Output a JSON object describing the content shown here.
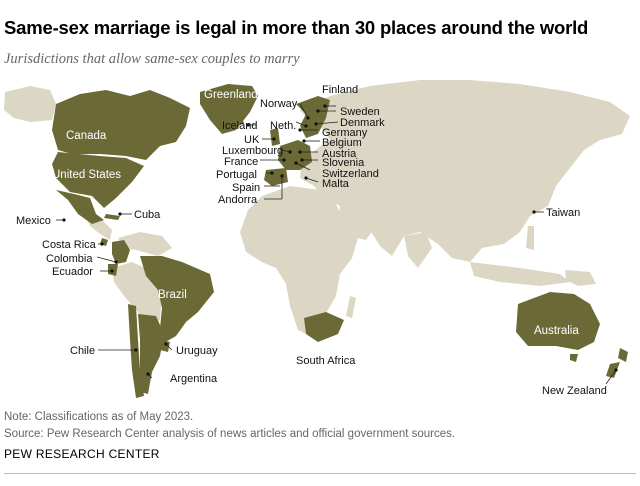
{
  "title": "Same-sex marriage is legal in more than 30 places around the world",
  "subtitle": "Jurisdictions that allow same-sex couples to marry",
  "colors": {
    "legal": "#6b6a36",
    "not_legal": "#dcd7c4",
    "background": "#ffffff"
  },
  "map": {
    "inside_labels": {
      "greenland": "Greenland",
      "canada": "Canada",
      "united_states": "United States",
      "brazil": "Brazil",
      "australia": "Australia"
    },
    "callouts": {
      "finland": "Finland",
      "norway": "Norway",
      "sweden": "Sweden",
      "iceland": "Iceland",
      "netherlands": "Neth.",
      "denmark": "Denmark",
      "germany": "Germany",
      "uk": "UK",
      "belgium": "Belgium",
      "luxembourg": "Luxembourg",
      "austria": "Austria",
      "france": "France",
      "slovenia": "Slovenia",
      "portugal": "Portugal",
      "switzerland": "Switzerland",
      "spain": "Spain",
      "malta": "Malta",
      "andorra": "Andorra",
      "mexico": "Mexico",
      "cuba": "Cuba",
      "taiwan": "Taiwan",
      "costa_rica": "Costa Rica",
      "colombia": "Colombia",
      "ecuador": "Ecuador",
      "chile": "Chile",
      "uruguay": "Uruguay",
      "argentina": "Argentina",
      "south_africa": "South Africa",
      "new_zealand": "New Zealand"
    }
  },
  "footer": {
    "note": "Note: Classifications as of May 2023.",
    "source": "Source: Pew Research Center analysis of news articles and official government sources.",
    "brand": "PEW RESEARCH CENTER"
  }
}
